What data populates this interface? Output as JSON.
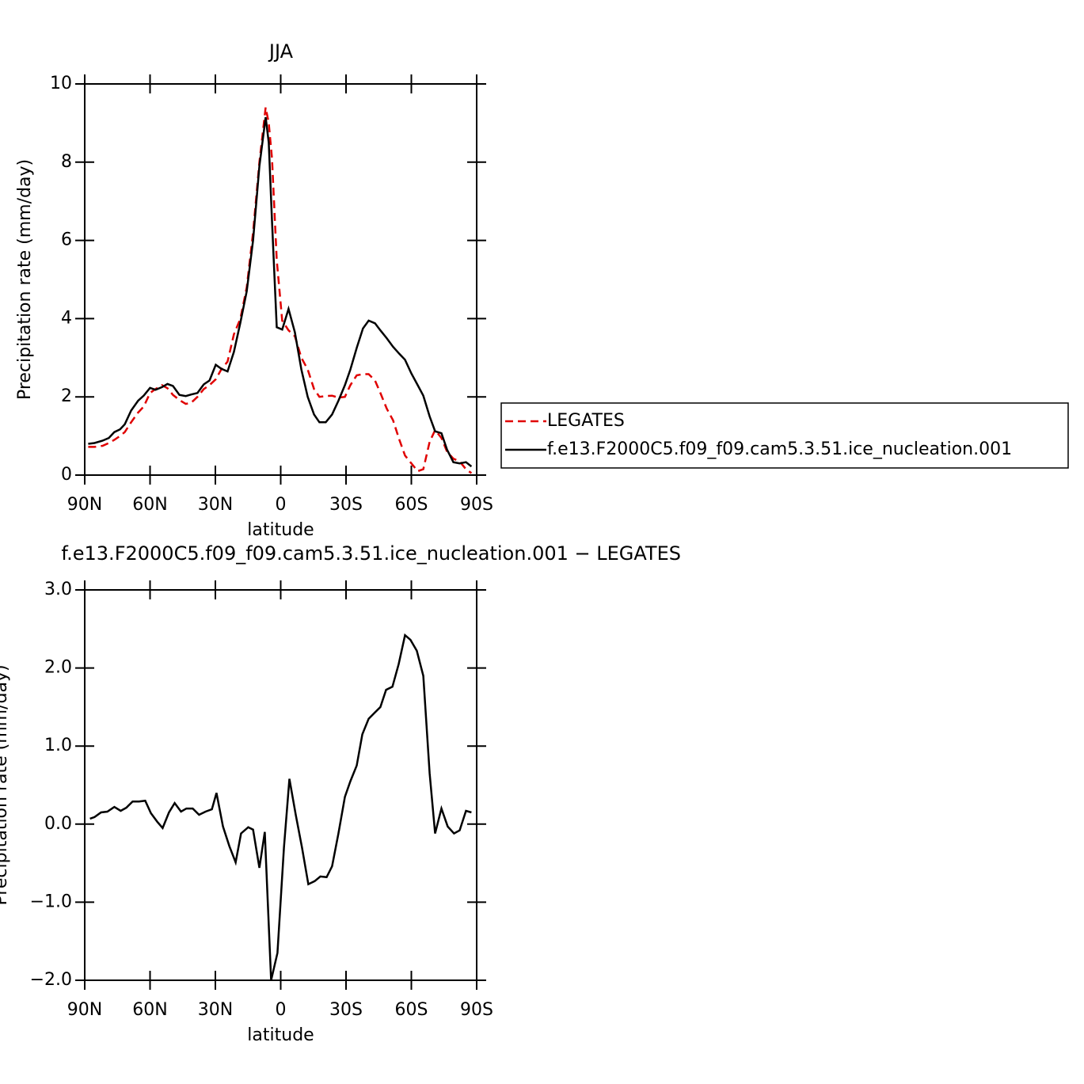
{
  "chart_data": [
    {
      "type": "line",
      "title": "JJA",
      "x_label": "latitude",
      "y_label": "Precipitation rate (mm/day)",
      "x": [
        88.4,
        85.5,
        81.8,
        78.9,
        76.4,
        73.8,
        71.6,
        68.7,
        65.5,
        62.9,
        60.0,
        57.5,
        54.5,
        52.0,
        49.5,
        46.5,
        43.6,
        41.1,
        38.2,
        35.3,
        32.7,
        29.8,
        27.3,
        24.4,
        21.5,
        18.5,
        15.6,
        12.7,
        9.8,
        6.9,
        5.5,
        4.0,
        1.8,
        -0.7,
        -3.6,
        -6.5,
        -9.5,
        -12.4,
        -15.3,
        -17.8,
        -20.7,
        -23.6,
        -26.5,
        -29.5,
        -32.0,
        -34.9,
        -37.8,
        -40.4,
        -43.3,
        -45.8,
        -48.7,
        -51.6,
        -54.5,
        -57.1,
        -60.0,
        -62.9,
        -65.5,
        -68.4,
        -70.9,
        -73.8,
        -76.4,
        -79.3,
        -82.2,
        -85.1,
        -87.6
      ],
      "series": [
        {
          "name": "LEGATES",
          "color": "#e00000",
          "dashed": true,
          "values": [
            0.72,
            0.72,
            0.75,
            0.82,
            0.9,
            1.0,
            1.1,
            1.35,
            1.6,
            1.75,
            2.1,
            2.2,
            2.3,
            2.22,
            2.05,
            1.92,
            1.82,
            1.85,
            2.0,
            2.2,
            2.3,
            2.45,
            2.7,
            2.9,
            3.6,
            4.0,
            4.8,
            6.2,
            8.0,
            9.4,
            9.0,
            8.1,
            5.5,
            3.95,
            3.7,
            3.55,
            3.0,
            2.7,
            2.2,
            2.0,
            2.02,
            2.03,
            1.98,
            2.0,
            2.3,
            2.55,
            2.58,
            2.58,
            2.42,
            2.1,
            1.7,
            1.4,
            0.9,
            0.5,
            0.3,
            0.1,
            0.15,
            0.85,
            1.15,
            0.95,
            0.6,
            0.42,
            0.35,
            0.15,
            0.05
          ]
        },
        {
          "name": "f.e13.F2000C5.f09_f09.cam5.3.51.ice_nucleation.001",
          "color": "#000000",
          "dashed": false,
          "values": [
            0.8,
            0.82,
            0.88,
            0.95,
            1.1,
            1.17,
            1.3,
            1.65,
            1.9,
            2.03,
            2.23,
            2.18,
            2.25,
            2.33,
            2.28,
            2.05,
            2.02,
            2.06,
            2.1,
            2.32,
            2.42,
            2.82,
            2.72,
            2.65,
            3.15,
            3.9,
            4.7,
            6.0,
            7.9,
            9.15,
            8.5,
            6.5,
            3.78,
            3.72,
            4.25,
            3.65,
            2.7,
            2.0,
            1.55,
            1.35,
            1.35,
            1.55,
            1.9,
            2.3,
            2.7,
            3.25,
            3.75,
            3.95,
            3.88,
            3.7,
            3.5,
            3.28,
            3.1,
            2.95,
            2.6,
            2.3,
            2.03,
            1.5,
            1.12,
            1.07,
            0.65,
            0.33,
            0.3,
            0.33,
            0.22
          ]
        }
      ],
      "xlim": [
        90,
        -90
      ],
      "xticks": [
        {
          "value": 90,
          "label": "90N"
        },
        {
          "value": 60,
          "label": "60N"
        },
        {
          "value": 30,
          "label": "30N"
        },
        0,
        {
          "value": -30,
          "label": "30S"
        },
        {
          "value": -60,
          "label": "60S"
        },
        {
          "value": -90,
          "label": "90S"
        }
      ],
      "ylim": [
        0,
        10
      ],
      "yticks": [
        0,
        2,
        4,
        6,
        8,
        10
      ],
      "legend": "right"
    },
    {
      "type": "line",
      "title": "f.e13.F2000C5.f09_f09.cam5.3.51.ice_nucleation.001 − LEGATES",
      "x_label": "latitude",
      "y_label": "Precipitation rate (mm/day)",
      "x": [
        87.6,
        85.5,
        82.5,
        79.6,
        76.4,
        73.5,
        70.9,
        68.0,
        65.1,
        62.2,
        59.6,
        56.7,
        54.2,
        51.3,
        48.7,
        45.8,
        43.3,
        40.4,
        37.5,
        34.5,
        31.6,
        29.5,
        26.5,
        23.6,
        20.7,
        18.2,
        14.9,
        12.7,
        9.8,
        7.3,
        4.4,
        1.5,
        -1.5,
        -4.0,
        -6.9,
        -9.8,
        -12.7,
        -15.6,
        -18.2,
        -21.1,
        -23.6,
        -26.5,
        -29.5,
        -32.0,
        -34.9,
        -37.5,
        -40.4,
        -42.9,
        -45.8,
        -48.4,
        -51.3,
        -54.2,
        -57.1,
        -59.6,
        -62.5,
        -65.5,
        -68.4,
        -70.9,
        -73.8,
        -76.7,
        -79.6,
        -82.2,
        -85.1,
        -87.6
      ],
      "values": [
        0.07,
        0.09,
        0.15,
        0.16,
        0.22,
        0.17,
        0.21,
        0.29,
        0.29,
        0.3,
        0.14,
        0.03,
        -0.05,
        0.15,
        0.27,
        0.16,
        0.2,
        0.2,
        0.12,
        0.16,
        0.19,
        0.4,
        -0.03,
        -0.28,
        -0.49,
        -0.12,
        -0.04,
        -0.07,
        -0.56,
        -0.1,
        -2.0,
        -1.65,
        -0.3,
        0.58,
        0.12,
        -0.3,
        -0.77,
        -0.73,
        -0.67,
        -0.68,
        -0.54,
        -0.12,
        0.35,
        0.55,
        0.75,
        1.15,
        1.35,
        1.42,
        1.5,
        1.72,
        1.76,
        2.05,
        2.42,
        2.36,
        2.22,
        1.9,
        0.65,
        -0.12,
        0.2,
        -0.03,
        -0.12,
        -0.08,
        0.17,
        0.15
      ],
      "color": "#000000",
      "xlim": [
        90,
        -90
      ],
      "xticks": [
        {
          "value": 90,
          "label": "90N"
        },
        {
          "value": 60,
          "label": "60N"
        },
        {
          "value": 30,
          "label": "30N"
        },
        0,
        {
          "value": -30,
          "label": "30S"
        },
        {
          "value": -60,
          "label": "60S"
        },
        {
          "value": -90,
          "label": "90S"
        }
      ],
      "ylim": [
        -2,
        3
      ],
      "yticks": [
        {
          "value": -2,
          "label": "−2.0"
        },
        {
          "value": -1,
          "label": "−1.0"
        },
        {
          "value": 0,
          "label": "0.0"
        },
        {
          "value": 1,
          "label": "1.0"
        },
        {
          "value": 2,
          "label": "2.0"
        },
        {
          "value": 3,
          "label": "3.0"
        }
      ]
    }
  ]
}
